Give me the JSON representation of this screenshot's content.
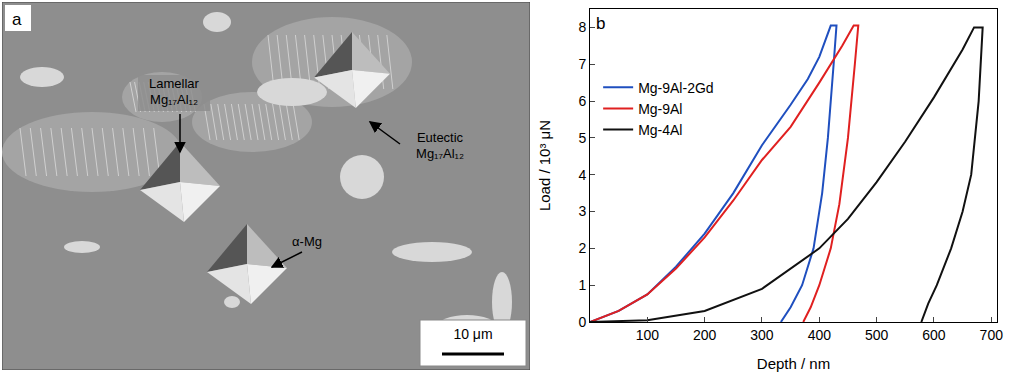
{
  "image_panel": {
    "panel_label": "a",
    "annotations": [
      "Lamellar Mg₁₇Al₁₂",
      "Eutectic Mg₁₇Al₁₂",
      "α-Mg"
    ],
    "scale_bar": "10 μm"
  },
  "chart_data": {
    "type": "line",
    "panel_label": "b",
    "x_label": "Depth / nm",
    "y_label": "Load / 10³ μN",
    "xlim": [
      0,
      710
    ],
    "ylim": [
      0,
      8.5
    ],
    "xticks": [
      100,
      200,
      300,
      400,
      500,
      600,
      700
    ],
    "yticks": [
      0,
      1,
      2,
      3,
      4,
      5,
      6,
      7,
      8
    ],
    "grid": false,
    "legend": "upper left",
    "series": [
      {
        "name": "Mg-9Al-2Gd",
        "color": "#1f4fbf",
        "x": [
          0,
          50,
          100,
          150,
          200,
          250,
          300,
          350,
          380,
          400,
          420,
          430,
          425,
          415,
          405,
          390,
          370,
          350,
          333
        ],
        "values": [
          0,
          0.3,
          0.75,
          1.5,
          2.4,
          3.5,
          4.8,
          5.9,
          6.6,
          7.2,
          8.05,
          8.05,
          7.0,
          5.0,
          3.5,
          2.0,
          1.0,
          0.4,
          0
        ]
      },
      {
        "name": "Mg-9Al",
        "color": "#e02020",
        "x": [
          0,
          50,
          100,
          150,
          200,
          250,
          300,
          350,
          400,
          440,
          460,
          468,
          462,
          450,
          435,
          420,
          400,
          385,
          372
        ],
        "values": [
          0,
          0.3,
          0.75,
          1.45,
          2.3,
          3.3,
          4.4,
          5.3,
          6.5,
          7.5,
          8.05,
          8.05,
          7.0,
          5.0,
          3.2,
          2.0,
          1.0,
          0.4,
          0
        ]
      },
      {
        "name": "Mg-4Al",
        "color": "#111111",
        "x": [
          0,
          100,
          200,
          300,
          400,
          450,
          500,
          550,
          600,
          650,
          670,
          685,
          678,
          665,
          650,
          630,
          605,
          590,
          578
        ],
        "values": [
          0,
          0.05,
          0.3,
          0.9,
          2.0,
          2.8,
          3.8,
          4.9,
          6.1,
          7.4,
          8.0,
          8.0,
          6.0,
          4.0,
          3.0,
          2.0,
          1.0,
          0.5,
          0
        ]
      }
    ]
  }
}
